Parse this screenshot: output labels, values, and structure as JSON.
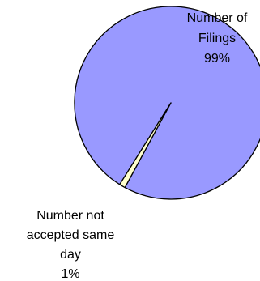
{
  "colors": {
    "slice_filings": "#9999ff",
    "slice_not_accepted": "#ffffcc",
    "outline": "#000000"
  },
  "chart_data": {
    "type": "pie",
    "slices": [
      {
        "label": "Number of Filings",
        "label_lines": [
          "Number of",
          "Filings"
        ],
        "percent_label": "99%",
        "value": 99
      },
      {
        "label": "Number not accepted same day",
        "label_lines": [
          "Number not",
          "accepted same",
          "day"
        ],
        "percent_label": "1%",
        "value": 1
      }
    ]
  }
}
